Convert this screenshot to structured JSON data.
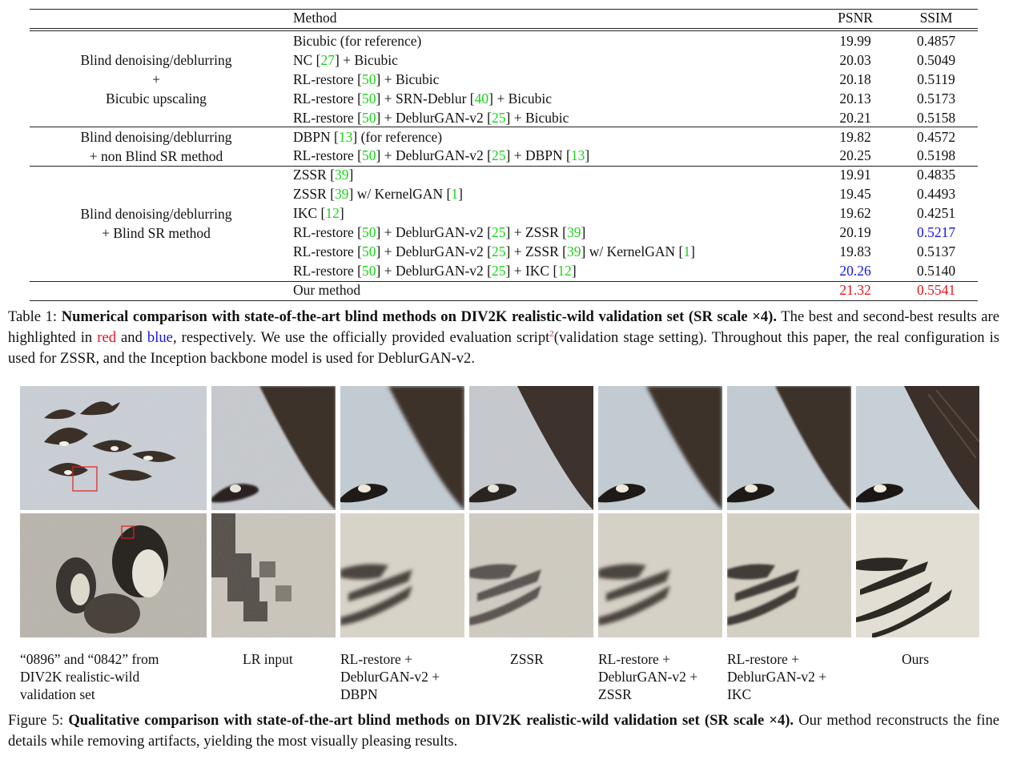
{
  "table": {
    "headers": {
      "method": "Method",
      "psnr": "PSNR",
      "ssim": "SSIM"
    },
    "groups": [
      {
        "label_lines": [
          "Blind denoising/deblurring",
          "+",
          "Bicubic upscaling"
        ]
      },
      {
        "label_lines": [
          "Blind denoising/deblurring",
          "+ non Blind SR method"
        ]
      },
      {
        "label_lines": [
          "Blind denoising/deblurring",
          "+ Blind SR method"
        ]
      }
    ],
    "rows": [
      {
        "method": [
          {
            "t": "Bicubic (for reference)"
          }
        ],
        "psnr": "19.99",
        "ssim": "0.4857"
      },
      {
        "method": [
          {
            "t": "NC ["
          },
          {
            "t": "27",
            "c": "cite"
          },
          {
            "t": "] + Bicubic"
          }
        ],
        "psnr": "20.03",
        "ssim": "0.5049"
      },
      {
        "method": [
          {
            "t": "RL-restore ["
          },
          {
            "t": "50",
            "c": "cite"
          },
          {
            "t": "] + Bicubic"
          }
        ],
        "psnr": "20.18",
        "ssim": "0.5119"
      },
      {
        "method": [
          {
            "t": "RL-restore ["
          },
          {
            "t": "50",
            "c": "cite"
          },
          {
            "t": "] + SRN-Deblur ["
          },
          {
            "t": "40",
            "c": "cite"
          },
          {
            "t": "] + Bicubic"
          }
        ],
        "psnr": "20.13",
        "ssim": "0.5173"
      },
      {
        "method": [
          {
            "t": "RL-restore ["
          },
          {
            "t": "50",
            "c": "cite"
          },
          {
            "t": "] + DeblurGAN-v2 ["
          },
          {
            "t": "25",
            "c": "cite"
          },
          {
            "t": "] + Bicubic"
          }
        ],
        "psnr": "20.21",
        "ssim": "0.5158"
      },
      {
        "method": [
          {
            "t": "DBPN ["
          },
          {
            "t": "13",
            "c": "cite"
          },
          {
            "t": "] (for reference)"
          }
        ],
        "psnr": "19.82",
        "ssim": "0.4572"
      },
      {
        "method": [
          {
            "t": "RL-restore ["
          },
          {
            "t": "50",
            "c": "cite"
          },
          {
            "t": "] + DeblurGAN-v2 ["
          },
          {
            "t": "25",
            "c": "cite"
          },
          {
            "t": "] + DBPN ["
          },
          {
            "t": "13",
            "c": "cite"
          },
          {
            "t": "]"
          }
        ],
        "psnr": "20.25",
        "ssim": "0.5198"
      },
      {
        "method": [
          {
            "t": "ZSSR ["
          },
          {
            "t": "39",
            "c": "cite"
          },
          {
            "t": "]"
          }
        ],
        "psnr": "19.91",
        "ssim": "0.4835"
      },
      {
        "method": [
          {
            "t": "ZSSR ["
          },
          {
            "t": "39",
            "c": "cite"
          },
          {
            "t": "] w/ KernelGAN ["
          },
          {
            "t": "1",
            "c": "cite"
          },
          {
            "t": "]"
          }
        ],
        "psnr": "19.45",
        "ssim": "0.4493"
      },
      {
        "method": [
          {
            "t": "IKC ["
          },
          {
            "t": "12",
            "c": "cite"
          },
          {
            "t": "]"
          }
        ],
        "psnr": "19.62",
        "ssim": "0.4251"
      },
      {
        "method": [
          {
            "t": "RL-restore ["
          },
          {
            "t": "50",
            "c": "cite"
          },
          {
            "t": "] + DeblurGAN-v2 ["
          },
          {
            "t": "25",
            "c": "cite"
          },
          {
            "t": "] + ZSSR ["
          },
          {
            "t": "39",
            "c": "cite"
          },
          {
            "t": "]"
          }
        ],
        "psnr": "20.19",
        "ssim": "0.5217",
        "ssim_color": "blue"
      },
      {
        "method": [
          {
            "t": "RL-restore ["
          },
          {
            "t": "50",
            "c": "cite"
          },
          {
            "t": "] + DeblurGAN-v2 ["
          },
          {
            "t": "25",
            "c": "cite"
          },
          {
            "t": "] + ZSSR ["
          },
          {
            "t": "39",
            "c": "cite"
          },
          {
            "t": "] w/ KernelGAN ["
          },
          {
            "t": "1",
            "c": "cite"
          },
          {
            "t": "]"
          }
        ],
        "psnr": "19.83",
        "ssim": "0.5137"
      },
      {
        "method": [
          {
            "t": "RL-restore ["
          },
          {
            "t": "50",
            "c": "cite"
          },
          {
            "t": "] + DeblurGAN-v2 ["
          },
          {
            "t": "25",
            "c": "cite"
          },
          {
            "t": "] + IKC ["
          },
          {
            "t": "12",
            "c": "cite"
          },
          {
            "t": "]"
          }
        ],
        "psnr": "20.26",
        "psnr_color": "blue",
        "ssim": "0.5140"
      },
      {
        "method": [
          {
            "t": "Our method"
          }
        ],
        "psnr": "21.32",
        "psnr_color": "red",
        "ssim": "0.5541",
        "ssim_color": "red"
      }
    ]
  },
  "table_caption": [
    {
      "t": "Table 1: "
    },
    {
      "t": "Numerical comparison with state-of-the-art blind methods on DIV2K realistic-wild validation set (SR scale ×4).",
      "b": true
    },
    {
      "t": " The best and second-best results are highlighted in "
    },
    {
      "t": "red",
      "c": "red"
    },
    {
      "t": " and "
    },
    {
      "t": "blue",
      "c": "blue"
    },
    {
      "t": ", respectively.  We use the officially provided evaluation script"
    },
    {
      "t": "2",
      "sup": true,
      "c": "red"
    },
    {
      "t": "(validation stage setting). Throughout this paper, the real configuration is used for ZSSR, and the Inception backbone model is used for DeblurGAN-v2."
    }
  ],
  "figure": {
    "column_labels": [
      [
        "“0896” and “0842” from",
        "DIV2K realistic-wild",
        "validation set"
      ],
      [
        "LR input"
      ],
      [
        "RL-restore +",
        "DeblurGAN-v2 +",
        "DBPN"
      ],
      [
        "ZSSR"
      ],
      [
        "RL-restore +",
        "DeblurGAN-v2 +",
        "ZSSR"
      ],
      [
        "RL-restore +",
        "DeblurGAN-v2 +",
        "IKC"
      ],
      [
        "Ours"
      ]
    ],
    "caption": [
      {
        "t": "Figure 5: "
      },
      {
        "t": "Qualitative comparison with state-of-the-art blind methods on DIV2K realistic-wild validation set (SR scale ×4).",
        "b": true
      },
      {
        "t": " Our method reconstructs the fine details while removing artifacts, yielding the most visually pleasing results."
      }
    ]
  }
}
